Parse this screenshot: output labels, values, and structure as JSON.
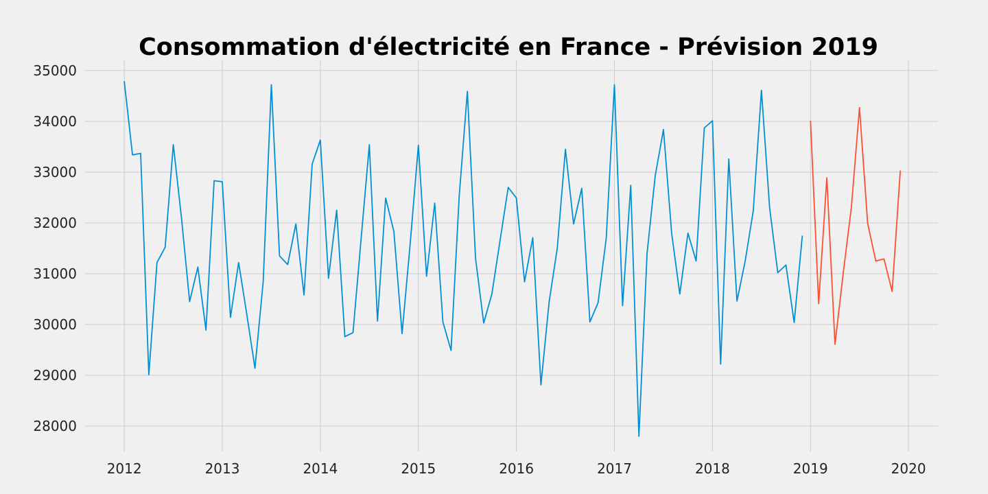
{
  "chart_data": {
    "type": "line",
    "title": "Consommation d'électricité en France - Prévision 2019",
    "xlabel": "",
    "ylabel": "",
    "xlim": [
      2011.6,
      2020.3
    ],
    "ylim": [
      27500,
      35200
    ],
    "x_ticks": [
      "2012",
      "2013",
      "2014",
      "2015",
      "2016",
      "2017",
      "2018",
      "2019",
      "2020"
    ],
    "y_ticks": [
      "28000",
      "29000",
      "30000",
      "31000",
      "32000",
      "33000",
      "34000",
      "35000"
    ],
    "grid": true,
    "legend": "none",
    "series": [
      {
        "color": "#008fd5",
        "start": 2012.0,
        "step_months": 1,
        "values": [
          34790,
          33340,
          33370,
          29010,
          31220,
          31520,
          33540,
          32100,
          30450,
          31130,
          29890,
          32830,
          32810,
          30140,
          31220,
          30200,
          29140,
          30840,
          34720,
          31350,
          31180,
          31980,
          30580,
          33160,
          33630,
          30910,
          32250,
          29760,
          29840,
          31700,
          33540,
          30070,
          32490,
          31830,
          29820,
          31600,
          33530,
          30950,
          32390,
          30050,
          29490,
          32530,
          34590,
          31300,
          30030,
          30600,
          31650,
          32700,
          32490,
          30840,
          31710,
          28810,
          30440,
          31500,
          33450,
          31980,
          32680,
          30050,
          30430,
          31700,
          34720,
          30370,
          32740,
          27800,
          31400,
          32930,
          33840,
          31800,
          30600,
          31800,
          31250,
          33870,
          34010,
          29220,
          33260,
          30460,
          31240,
          32240,
          34610,
          32300,
          31020,
          31170,
          30040,
          31750
        ]
      },
      {
        "color": "#fc4f30",
        "start": 2019.0,
        "step_months": 1,
        "values": [
          34010,
          30410,
          32890,
          29610,
          31000,
          32300,
          34270,
          31990,
          31250,
          31290,
          30650,
          33030
        ]
      }
    ]
  }
}
